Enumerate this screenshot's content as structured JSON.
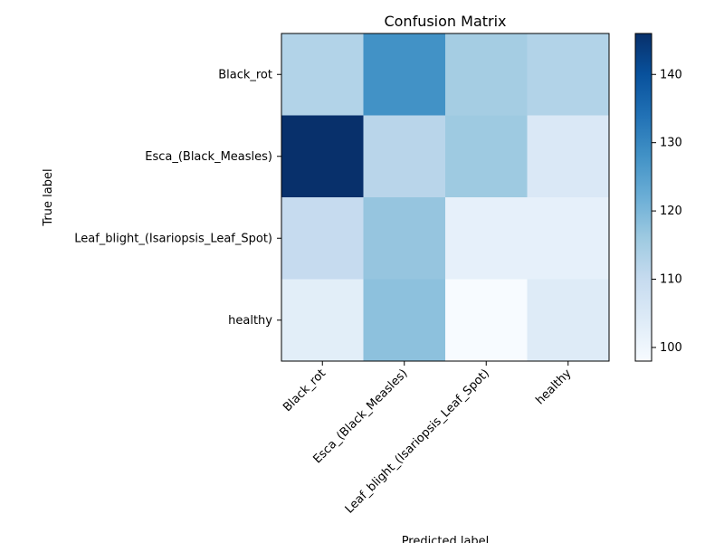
{
  "chart_data": {
    "type": "heatmap",
    "title": "Confusion Matrix",
    "xlabel": "Predicted label",
    "ylabel": "True label",
    "rows": [
      "Black_rot",
      "Esca_(Black_Measles)",
      "Leaf_blight_(Isariopsis_Leaf_Spot)",
      "healthy"
    ],
    "columns": [
      "Black_rot",
      "Esca_(Black_Measles)",
      "Leaf_blight_(Isariopsis_Leaf_Spot)",
      "healthy"
    ],
    "values": [
      [
        113,
        128,
        115,
        113
      ],
      [
        146,
        112,
        116,
        105
      ],
      [
        110,
        117,
        102,
        102
      ],
      [
        103,
        118,
        98,
        104
      ]
    ],
    "colorbar": {
      "min": 98,
      "max": 146,
      "ticks": [
        "100",
        "110",
        "120",
        "130",
        "140"
      ],
      "colormap": "Blues"
    }
  }
}
